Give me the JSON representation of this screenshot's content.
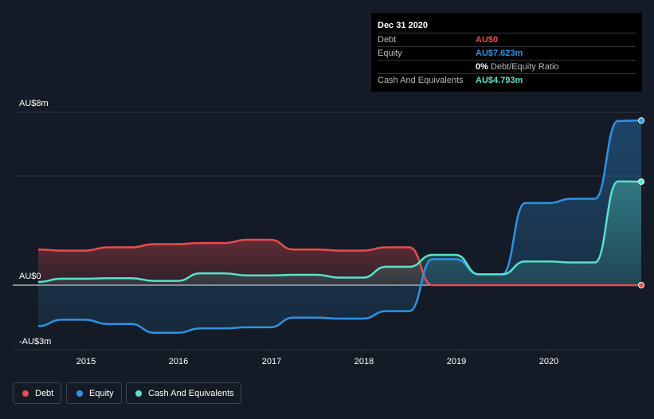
{
  "tooltip": {
    "date": "Dec 31 2020",
    "rows": [
      {
        "label": "Debt",
        "value": "AU$0",
        "color": "#e84c4f"
      },
      {
        "label": "Equity",
        "value": "AU$7.623m",
        "color": "#2d93e3"
      },
      {
        "label": "Cash And Equivalents",
        "value": "AU$4.793m",
        "color": "#58e2c8"
      }
    ],
    "ratio_value": "0%",
    "ratio_label": "Debt/Equity Ratio"
  },
  "legend": {
    "debt": "Debt",
    "equity": "Equity",
    "cash": "Cash And Equivalents"
  },
  "chart_data": {
    "type": "area",
    "y_tick_labels": [
      "AU$8m",
      "AU$0",
      "-AU$3m"
    ],
    "x_tick_labels": [
      "2015",
      "2016",
      "2017",
      "2018",
      "2019",
      "2020"
    ],
    "ylim": [
      -3,
      8
    ],
    "xlim": [
      2014.5,
      2021.0
    ],
    "grid": true,
    "legend_position": "bottom-left",
    "series": [
      {
        "name": "Debt",
        "color": "#e84c4f",
        "x": [
          2014.5,
          2014.75,
          2015.0,
          2015.25,
          2015.5,
          2015.75,
          2016.0,
          2016.25,
          2016.5,
          2016.75,
          2017.0,
          2017.25,
          2017.5,
          2017.75,
          2018.0,
          2018.25,
          2018.5,
          2018.75,
          2019.0,
          2019.25,
          2019.5,
          2019.75,
          2020.0,
          2020.25,
          2020.5,
          2020.75,
          2021.0
        ],
        "values": [
          1.65,
          1.6,
          1.6,
          1.75,
          1.75,
          1.9,
          1.9,
          1.95,
          1.95,
          2.1,
          2.1,
          1.65,
          1.65,
          1.6,
          1.6,
          1.75,
          1.75,
          0,
          0,
          0,
          0,
          0,
          0,
          0,
          0,
          0,
          0
        ]
      },
      {
        "name": "Equity",
        "color": "#2d93e3",
        "x": [
          2014.5,
          2014.75,
          2015.0,
          2015.25,
          2015.5,
          2015.75,
          2016.0,
          2016.25,
          2016.5,
          2016.75,
          2017.0,
          2017.25,
          2017.5,
          2017.75,
          2018.0,
          2018.25,
          2018.5,
          2018.75,
          2019.0,
          2019.25,
          2019.5,
          2019.75,
          2020.0,
          2020.25,
          2020.5,
          2020.75,
          2021.0
        ],
        "values": [
          -1.9,
          -1.6,
          -1.6,
          -1.8,
          -1.8,
          -2.2,
          -2.2,
          -2.0,
          -2.0,
          -1.95,
          -1.95,
          -1.5,
          -1.5,
          -1.55,
          -1.55,
          -1.2,
          -1.2,
          1.2,
          1.2,
          0.5,
          0.5,
          3.8,
          3.8,
          4.0,
          4.0,
          7.6,
          7.623
        ]
      },
      {
        "name": "Cash And Equivalents",
        "color": "#58e2c8",
        "x": [
          2014.5,
          2014.75,
          2015.0,
          2015.25,
          2015.5,
          2015.75,
          2016.0,
          2016.25,
          2016.5,
          2016.75,
          2017.0,
          2017.25,
          2017.5,
          2017.75,
          2018.0,
          2018.25,
          2018.5,
          2018.75,
          2019.0,
          2019.25,
          2019.5,
          2019.75,
          2020.0,
          2020.25,
          2020.5,
          2020.75,
          2021.0
        ],
        "values": [
          0.15,
          0.3,
          0.3,
          0.32,
          0.32,
          0.2,
          0.2,
          0.55,
          0.55,
          0.45,
          0.45,
          0.48,
          0.48,
          0.35,
          0.35,
          0.85,
          0.85,
          1.4,
          1.4,
          0.5,
          0.5,
          1.1,
          1.1,
          1.05,
          1.05,
          4.8,
          4.793
        ]
      }
    ]
  }
}
